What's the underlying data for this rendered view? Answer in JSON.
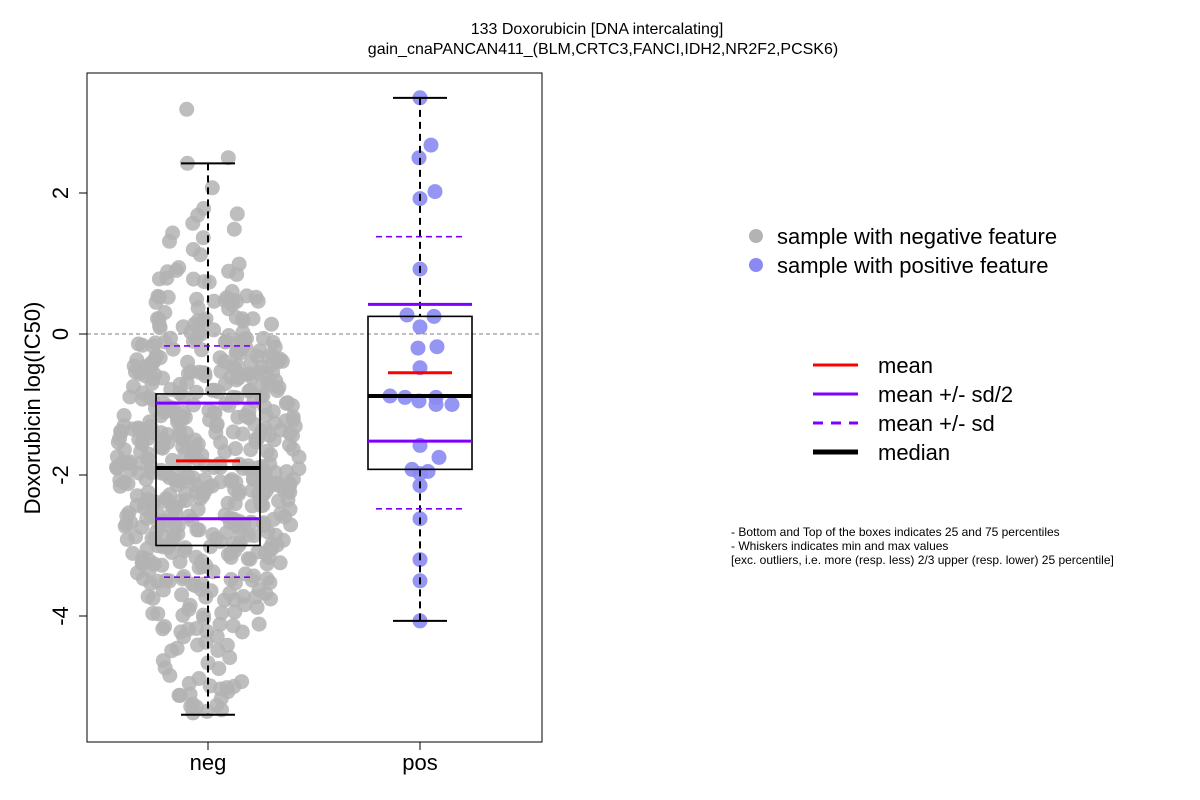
{
  "chart_data": {
    "type": "box",
    "title": "133 Doxorubicin [DNA intercalating]",
    "subtitle": "gain_cnaPANCAN411_(BLM,CRTC3,FANCI,IDH2,NR2F2,PCSK6)",
    "ylabel": "Doxorubicin log(IC50)",
    "xlabel": "",
    "categories": [
      "neg",
      "pos"
    ],
    "yticks": [
      -4,
      -2,
      0,
      2
    ],
    "ylim": [
      -5.8,
      3.7
    ],
    "reference_line_y": 0,
    "colors": {
      "neg_points": "#b3b3b3",
      "pos_points": "#8a8af2",
      "mean": "#ff0000",
      "sd": "#8000ff",
      "median": "#000000"
    },
    "groups": [
      {
        "name": "neg",
        "min": -5.4,
        "q1": -3.0,
        "median": -1.9,
        "q3": -0.85,
        "max": 2.42,
        "mean": -1.8,
        "mean_minus_half_sd": -2.62,
        "mean_plus_half_sd": -0.98,
        "mean_minus_sd": -3.45,
        "mean_plus_sd": -0.17,
        "n_points": 560
      },
      {
        "name": "pos",
        "min": -4.07,
        "q1": -1.92,
        "median": -0.88,
        "q3": 0.25,
        "max": 3.35,
        "mean": -0.55,
        "mean_minus_half_sd": -1.52,
        "mean_plus_half_sd": 0.42,
        "mean_minus_sd": -2.48,
        "mean_plus_sd": 1.38,
        "points": [
          3.35,
          2.68,
          2.5,
          2.02,
          1.92,
          0.92,
          0.27,
          0.25,
          0.1,
          -0.18,
          -0.2,
          -0.48,
          -0.88,
          -0.9,
          -0.9,
          -0.95,
          -1.0,
          -1.0,
          -1.58,
          -1.75,
          -1.92,
          -1.95,
          -1.98,
          -2.15,
          -2.62,
          -3.2,
          -3.5,
          -4.07
        ]
      }
    ],
    "legend": {
      "points": [
        {
          "label": "sample with negative feature",
          "color": "#b3b3b3"
        },
        {
          "label": "sample with positive feature",
          "color": "#8a8af2"
        }
      ],
      "lines": [
        {
          "label": "mean",
          "color": "#ff0000",
          "style": "solid"
        },
        {
          "label": "mean +/- sd/2",
          "color": "#8000ff",
          "style": "solid"
        },
        {
          "label": "mean +/- sd",
          "color": "#8000ff",
          "style": "dashed"
        },
        {
          "label": "median",
          "color": "#000000",
          "style": "thick"
        }
      ]
    },
    "notes": [
      "- Bottom and Top of the boxes indicates 25 and 75 percentiles",
      "- Whiskers indicates min and max values",
      "[exc. outliers, i.e. more (resp. less) 2/3 upper (resp. lower) 25 percentile]"
    ]
  }
}
